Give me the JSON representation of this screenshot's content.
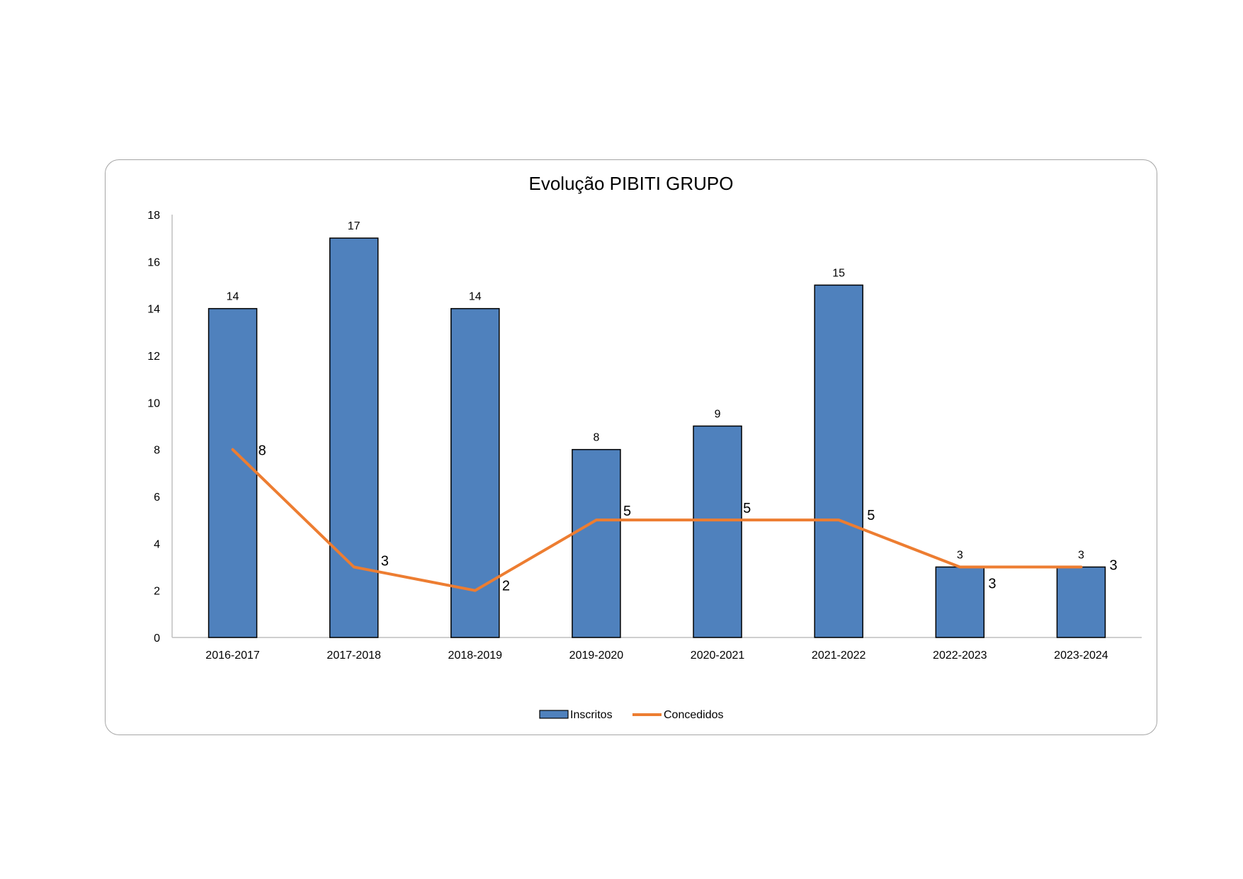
{
  "chart_data": {
    "type": "bar",
    "title": "Evolução PIBITI GRUPO",
    "xlabel": "",
    "ylabel": "",
    "ylim": [
      0,
      18
    ],
    "yticks": [
      0,
      2,
      4,
      6,
      8,
      10,
      12,
      14,
      16,
      18
    ],
    "categories": [
      "2016-2017",
      "2017-2018",
      "2018-2019",
      "2019-2020",
      "2020-2021",
      "2021-2022",
      "2022-2023",
      "2023-2024"
    ],
    "series": [
      {
        "name": "Inscritos",
        "kind": "bar",
        "color": "#4f81bd",
        "values": [
          14,
          17,
          14,
          8,
          9,
          15,
          3,
          3
        ]
      },
      {
        "name": "Concedidos",
        "kind": "line",
        "color": "#ed7d31",
        "values": [
          8,
          3,
          2,
          5,
          5,
          5,
          3,
          3
        ]
      }
    ],
    "grid": false,
    "legend": "bottom-center"
  }
}
